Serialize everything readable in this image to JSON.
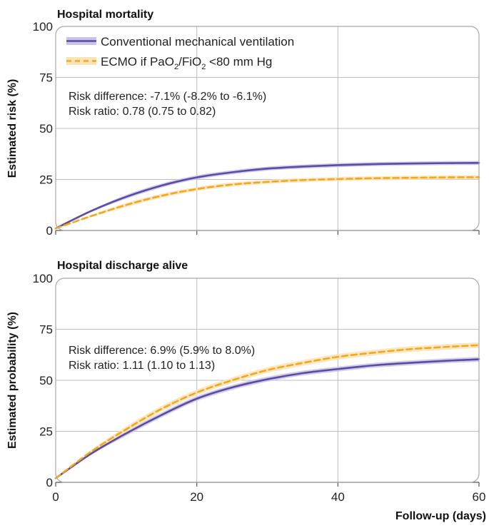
{
  "colors": {
    "cmv": "#5b4ba3",
    "cmv_band": "#c9c3e6",
    "ecmo": "#f2a81d",
    "ecmo_band": "#fbe3b8",
    "grid": "#bdbdbd",
    "frame": "#a8a8a8"
  },
  "legend": {
    "cmv_label": "Conventional mechanical ventilation",
    "ecmo_prefix": "ECMO if PaO",
    "ecmo_sub1": "2",
    "ecmo_mid": "/FiO",
    "ecmo_sub2": "2",
    "ecmo_suffix": " <80 mm Hg"
  },
  "xlabel": "Follow-up (days)",
  "chart_data": [
    {
      "type": "line",
      "title": "Hospital mortality",
      "ylabel": "Estimated risk (%)",
      "xlim": [
        0,
        60
      ],
      "ylim": [
        0,
        100
      ],
      "xticks": [
        "0",
        "20",
        "40",
        "60"
      ],
      "yticks": [
        "0",
        "25",
        "50",
        "75",
        "100"
      ],
      "grid": true,
      "legend": "top-left",
      "annotations": [
        "Risk difference: -7.1% (-8.2% to -6.1%)",
        "Risk ratio: 0.78 (0.75 to 0.82)"
      ],
      "x": [
        0,
        5,
        10,
        15,
        20,
        25,
        30,
        35,
        40,
        45,
        50,
        55,
        60
      ],
      "series": [
        {
          "name": "Conventional mechanical ventilation",
          "values": [
            1,
            9.5,
            16.5,
            22,
            26,
            28.5,
            30.3,
            31.3,
            32,
            32.5,
            32.8,
            33,
            33.1
          ],
          "band": 1.0
        },
        {
          "name": "ECMO if PaO2/FiO2 <80 mm Hg",
          "values": [
            1,
            7,
            12.5,
            17,
            20.3,
            22.5,
            23.8,
            24.7,
            25.2,
            25.6,
            25.8,
            26,
            26.1
          ],
          "band": 1.0
        }
      ]
    },
    {
      "type": "line",
      "title": "Hospital discharge alive",
      "ylabel": "Estimated probability (%)",
      "xlim": [
        0,
        60
      ],
      "ylim": [
        0,
        100
      ],
      "xticks": [
        "0",
        "20",
        "40",
        "60"
      ],
      "yticks": [
        "0",
        "25",
        "50",
        "75",
        "100"
      ],
      "grid": true,
      "annotations": [
        "Risk difference: 6.9% (5.9% to 8.0%)",
        "Risk ratio: 1.11 (1.10 to 1.13)"
      ],
      "x": [
        0,
        5,
        10,
        15,
        20,
        25,
        30,
        35,
        40,
        45,
        50,
        55,
        60
      ],
      "series": [
        {
          "name": "Conventional mechanical ventilation",
          "values": [
            2,
            14,
            24,
            33,
            41,
            46.5,
            50.5,
            53.5,
            55.5,
            57.3,
            58.5,
            59.5,
            60.3
          ],
          "band": 1.2
        },
        {
          "name": "ECMO if PaO2/FiO2 <80 mm Hg",
          "values": [
            2,
            15,
            26,
            36,
            44,
            50,
            55,
            58.5,
            61.5,
            63.5,
            65.2,
            66.3,
            67.2
          ],
          "band": 1.4
        }
      ]
    }
  ]
}
